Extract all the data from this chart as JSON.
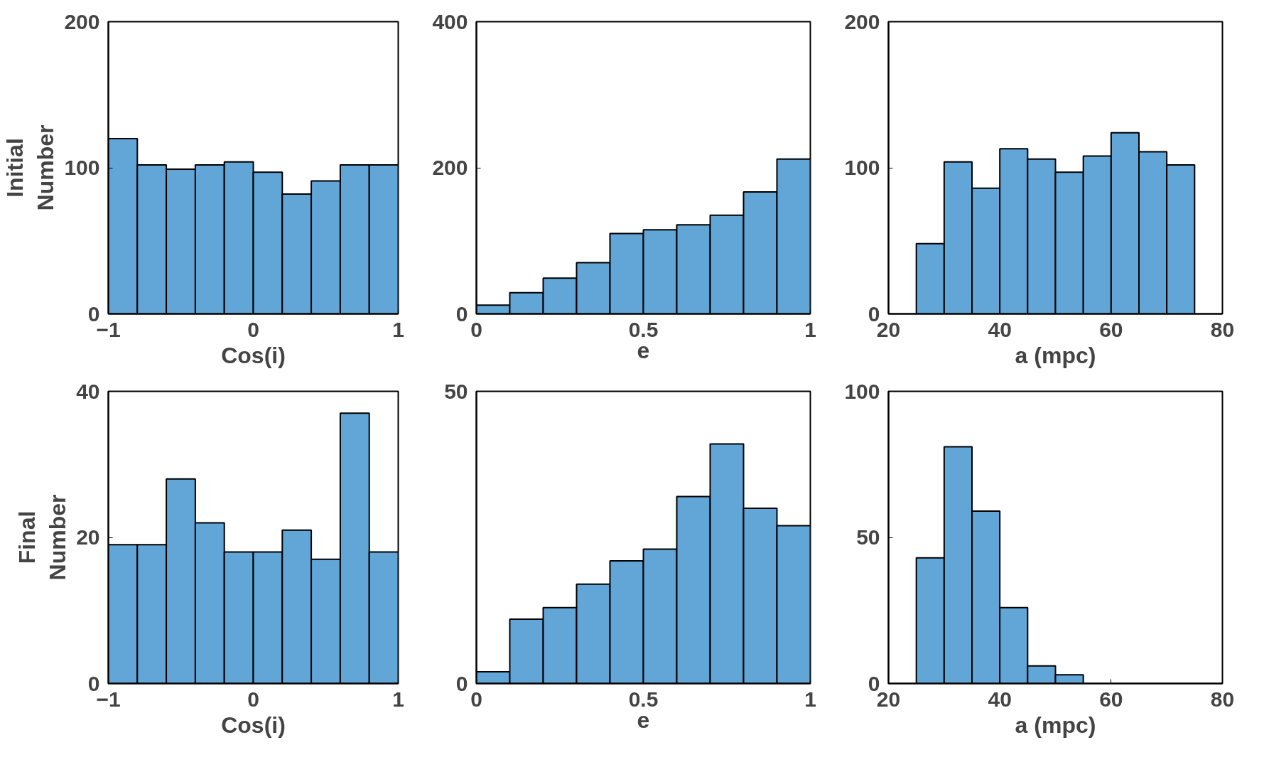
{
  "chart_data": [
    {
      "type": "histogram",
      "bins": [
        -1,
        -0.8,
        -0.6,
        -0.4,
        -0.2,
        0,
        0.2,
        0.4,
        0.6,
        0.8,
        1
      ],
      "values": [
        120,
        102,
        99,
        102,
        104,
        97,
        82,
        91,
        102,
        102
      ],
      "color": "#62a6d8",
      "xlim": [
        -1,
        1
      ],
      "ylim": [
        0,
        200
      ],
      "xticks": [
        -1,
        0,
        1
      ],
      "yticks": [
        0,
        100,
        200
      ],
      "xlabel": "Cos(i)",
      "ylabel": "Initial\nNumber"
    },
    {
      "type": "histogram",
      "bins": [
        0,
        0.1,
        0.2,
        0.3,
        0.4,
        0.5,
        0.6,
        0.7,
        0.8,
        0.9,
        1
      ],
      "values": [
        12,
        29,
        49,
        70,
        110,
        115,
        122,
        135,
        167,
        212
      ],
      "color": "#62a6d8",
      "xlim": [
        0,
        1
      ],
      "ylim": [
        0,
        400
      ],
      "xticks": [
        0,
        0.5,
        1
      ],
      "yticks": [
        0,
        200,
        400
      ],
      "xlabel": "e"
    },
    {
      "type": "histogram",
      "bins": [
        25,
        30,
        35,
        40,
        45,
        50,
        55,
        60,
        65,
        70,
        75
      ],
      "values": [
        48,
        104,
        86,
        113,
        106,
        97,
        108,
        124,
        111,
        102
      ],
      "color": "#62a6d8",
      "xlim": [
        20,
        80
      ],
      "ylim": [
        0,
        200
      ],
      "xticks": [
        20,
        40,
        60,
        80
      ],
      "yticks": [
        0,
        100,
        200
      ],
      "xlabel": "a (mpc)"
    },
    {
      "type": "histogram",
      "bins": [
        -1,
        -0.8,
        -0.6,
        -0.4,
        -0.2,
        0,
        0.2,
        0.4,
        0.6,
        0.8,
        1
      ],
      "values": [
        19,
        19,
        28,
        22,
        18,
        18,
        21,
        17,
        37,
        18
      ],
      "color": "#62a6d8",
      "xlim": [
        -1,
        1
      ],
      "ylim": [
        0,
        40
      ],
      "xticks": [
        -1,
        0,
        1
      ],
      "yticks": [
        0,
        20,
        40
      ],
      "xlabel": "Cos(i)",
      "ylabel": "Final\nNumber"
    },
    {
      "type": "histogram",
      "bins": [
        0,
        0.1,
        0.2,
        0.3,
        0.4,
        0.5,
        0.6,
        0.7,
        0.8,
        0.9,
        1
      ],
      "values": [
        2,
        11,
        13,
        17,
        21,
        23,
        32,
        41,
        30,
        27
      ],
      "color": "#62a6d8",
      "xlim": [
        0,
        1
      ],
      "ylim": [
        0,
        50
      ],
      "xticks": [
        0,
        0.5,
        1
      ],
      "yticks": [
        0,
        50
      ],
      "xlabel": "e"
    },
    {
      "type": "histogram",
      "bins": [
        25,
        30,
        35,
        40,
        45,
        50,
        55
      ],
      "values": [
        43,
        81,
        59,
        26,
        6,
        3
      ],
      "color": "#62a6d8",
      "xlim": [
        20,
        80
      ],
      "ylim": [
        0,
        100
      ],
      "xticks": [
        20,
        40,
        60,
        80
      ],
      "yticks": [
        0,
        50,
        100
      ],
      "xlabel": "a (mpc)"
    }
  ]
}
